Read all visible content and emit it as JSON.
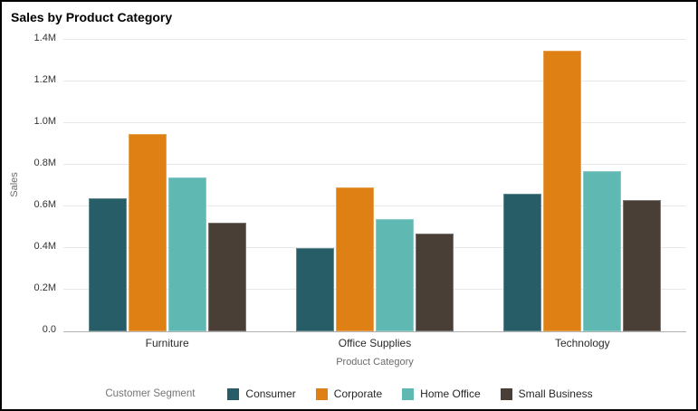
{
  "title": "Sales by Product Category",
  "chart_data": {
    "type": "bar",
    "title": "Sales by Product Category",
    "xlabel": "Product Category",
    "ylabel": "Sales",
    "categories": [
      "Furniture",
      "Office Supplies",
      "Technology"
    ],
    "series": [
      {
        "name": "Consumer",
        "color": "#265D66",
        "values": [
          0.64,
          0.4,
          0.66
        ]
      },
      {
        "name": "Corporate",
        "color": "#DE8013",
        "values": [
          0.95,
          0.69,
          1.35
        ]
      },
      {
        "name": "Home Office",
        "color": "#5FB8B2",
        "values": [
          0.74,
          0.54,
          0.77
        ]
      },
      {
        "name": "Small Business",
        "color": "#4A3F37",
        "values": [
          0.52,
          0.47,
          0.63
        ]
      }
    ],
    "value_unit": "M",
    "ylim": [
      0,
      1.4
    ],
    "y_tick_step": 0.2,
    "y_tick_labels": [
      "0.0",
      "0.2M",
      "0.4M",
      "0.6M",
      "0.8M",
      "1.0M",
      "1.2M",
      "1.4M"
    ],
    "grid": "horizontal",
    "legend_position": "bottom"
  },
  "legend": {
    "title": "Customer Segment",
    "items": [
      "Consumer",
      "Corporate",
      "Home Office",
      "Small Business"
    ]
  },
  "colors": {
    "gridline": "#e8e8e8",
    "axis_line": "#b0b0b0",
    "tick_text": "#333333",
    "axis_title_text": "#6b6b6b",
    "title_text": "#000000"
  }
}
